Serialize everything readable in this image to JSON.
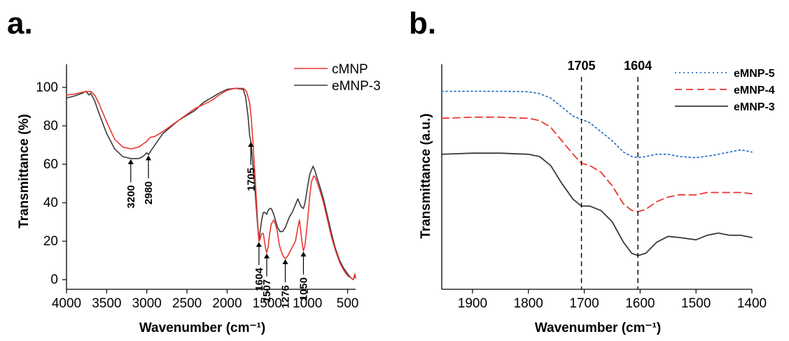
{
  "panels": {
    "a": {
      "label": "a."
    },
    "b": {
      "label": "b."
    }
  },
  "chart_data": [
    {
      "type": "line",
      "panel": "a",
      "xlabel": "Wavenumber (cm⁻¹)",
      "ylabel": "Transmittance (%)",
      "xlim": [
        4000,
        400
      ],
      "ylim": [
        -5,
        112
      ],
      "x_reversed": true,
      "xticks": [
        4000,
        3500,
        3000,
        2500,
        2000,
        1500,
        1000,
        500
      ],
      "yticks": [
        0,
        20,
        40,
        60,
        80,
        100
      ],
      "legend_position": "top-right",
      "series": [
        {
          "name": "cMNP",
          "color": "#e8372f",
          "dash": "solid",
          "points": [
            [
              4000,
              96
            ],
            [
              3900,
              96.5
            ],
            [
              3800,
              97.5
            ],
            [
              3700,
              98
            ],
            [
              3650,
              96
            ],
            [
              3600,
              92
            ],
            [
              3500,
              82
            ],
            [
              3400,
              73
            ],
            [
              3300,
              69
            ],
            [
              3200,
              68
            ],
            [
              3100,
              69
            ],
            [
              3000,
              72
            ],
            [
              2960,
              74
            ],
            [
              2900,
              74.5
            ],
            [
              2800,
              77
            ],
            [
              2600,
              83
            ],
            [
              2400,
              89
            ],
            [
              2300,
              91
            ],
            [
              2200,
              93
            ],
            [
              2100,
              96
            ],
            [
              2000,
              98.5
            ],
            [
              1900,
              99.5
            ],
            [
              1800,
              99.5
            ],
            [
              1760,
              98
            ],
            [
              1720,
              92
            ],
            [
              1700,
              84
            ],
            [
              1680,
              72
            ],
            [
              1650,
              52
            ],
            [
              1620,
              30
            ],
            [
              1604,
              20
            ],
            [
              1590,
              21
            ],
            [
              1570,
              24
            ],
            [
              1550,
              24
            ],
            [
              1520,
              16
            ],
            [
              1507,
              14
            ],
            [
              1490,
              17
            ],
            [
              1470,
              24
            ],
            [
              1450,
              29
            ],
            [
              1420,
              31
            ],
            [
              1400,
              29
            ],
            [
              1380,
              26
            ],
            [
              1350,
              18
            ],
            [
              1320,
              14
            ],
            [
              1300,
              12
            ],
            [
              1276,
              11
            ],
            [
              1250,
              12
            ],
            [
              1200,
              16
            ],
            [
              1150,
              20
            ],
            [
              1120,
              27
            ],
            [
              1100,
              31
            ],
            [
              1080,
              24
            ],
            [
              1060,
              17
            ],
            [
              1050,
              15
            ],
            [
              1030,
              18
            ],
            [
              1000,
              30
            ],
            [
              970,
              44
            ],
            [
              950,
              51
            ],
            [
              920,
              54
            ],
            [
              900,
              53
            ],
            [
              850,
              47
            ],
            [
              800,
              40
            ],
            [
              750,
              31
            ],
            [
              700,
              22
            ],
            [
              650,
              15
            ],
            [
              600,
              9
            ],
            [
              550,
              5
            ],
            [
              500,
              2
            ],
            [
              460,
              1
            ],
            [
              430,
              0
            ],
            [
              410,
              3
            ],
            [
              400,
              1
            ]
          ]
        },
        {
          "name": "eMNP-3",
          "color": "#3a3a3a",
          "dash": "solid",
          "points": [
            [
              4000,
              94.5
            ],
            [
              3900,
              95.5
            ],
            [
              3800,
              97
            ],
            [
              3760,
              98
            ],
            [
              3720,
              96
            ],
            [
              3700,
              97
            ],
            [
              3650,
              93
            ],
            [
              3600,
              87
            ],
            [
              3500,
              76
            ],
            [
              3400,
              68
            ],
            [
              3300,
              64
            ],
            [
              3200,
              63
            ],
            [
              3100,
              63
            ],
            [
              3050,
              64
            ],
            [
              3000,
              66
            ],
            [
              2980,
              65
            ],
            [
              2950,
              67
            ],
            [
              2900,
              70
            ],
            [
              2800,
              76
            ],
            [
              2600,
              83
            ],
            [
              2400,
              88
            ],
            [
              2300,
              92
            ],
            [
              2200,
              94.5
            ],
            [
              2100,
              97
            ],
            [
              2000,
              99
            ],
            [
              1900,
              99.5
            ],
            [
              1800,
              99
            ],
            [
              1770,
              95
            ],
            [
              1740,
              85
            ],
            [
              1720,
              75
            ],
            [
              1705,
              72
            ],
            [
              1680,
              60
            ],
            [
              1650,
              45
            ],
            [
              1620,
              28
            ],
            [
              1604,
              20
            ],
            [
              1590,
              25
            ],
            [
              1570,
              31
            ],
            [
              1550,
              35
            ],
            [
              1530,
              35
            ],
            [
              1507,
              34
            ],
            [
              1490,
              36
            ],
            [
              1470,
              37
            ],
            [
              1450,
              37
            ],
            [
              1420,
              34
            ],
            [
              1400,
              31
            ],
            [
              1370,
              27
            ],
            [
              1340,
              25
            ],
            [
              1310,
              25
            ],
            [
              1276,
              27
            ],
            [
              1250,
              30
            ],
            [
              1220,
              33
            ],
            [
              1190,
              35
            ],
            [
              1150,
              39
            ],
            [
              1120,
              42
            ],
            [
              1100,
              40
            ],
            [
              1080,
              38
            ],
            [
              1050,
              37
            ],
            [
              1030,
              40
            ],
            [
              1000,
              48
            ],
            [
              970,
              55
            ],
            [
              950,
              57
            ],
            [
              930,
              59
            ],
            [
              910,
              57
            ],
            [
              880,
              53
            ],
            [
              850,
              49
            ],
            [
              800,
              42
            ],
            [
              750,
              33
            ],
            [
              700,
              24
            ],
            [
              650,
              16
            ],
            [
              600,
              10
            ],
            [
              550,
              6
            ],
            [
              500,
              3
            ],
            [
              460,
              1
            ],
            [
              430,
              0
            ],
            [
              410,
              2
            ],
            [
              400,
              1
            ]
          ]
        }
      ],
      "annotations": [
        {
          "text": "3200",
          "x": 3200,
          "y_tip": 63
        },
        {
          "text": "2980",
          "x": 2980,
          "y_tip": 65
        },
        {
          "text": "1705",
          "x": 1705,
          "y_tip": 72
        },
        {
          "text": "1604",
          "x": 1604,
          "y_tip": 20
        },
        {
          "text": "1507",
          "x": 1507,
          "y_tip": 14
        },
        {
          "text": "1276",
          "x": 1276,
          "y_tip": 11
        },
        {
          "text": "1050",
          "x": 1050,
          "y_tip": 15
        }
      ]
    },
    {
      "type": "line",
      "panel": "b",
      "xlabel": "Wavenumber (cm⁻¹)",
      "ylabel": "Transmittance (a.u.)",
      "xlim": [
        1955,
        1400
      ],
      "ylim": [
        0,
        100
      ],
      "x_reversed": true,
      "xticks": [
        1900,
        1800,
        1700,
        1600,
        1500,
        1400
      ],
      "yticks": [],
      "legend_position": "top-right",
      "vertical_markers": [
        {
          "text": "1705",
          "x": 1705
        },
        {
          "text": "1604",
          "x": 1604
        }
      ],
      "series": [
        {
          "name": "eMNP-5",
          "color": "#2e74c9",
          "dash": "dotted",
          "points": [
            [
              1955,
              88
            ],
            [
              1900,
              88
            ],
            [
              1850,
              88
            ],
            [
              1800,
              87.8
            ],
            [
              1780,
              87
            ],
            [
              1760,
              85
            ],
            [
              1740,
              81
            ],
            [
              1720,
              77
            ],
            [
              1705,
              75.5
            ],
            [
              1690,
              74
            ],
            [
              1670,
              70
            ],
            [
              1650,
              66
            ],
            [
              1630,
              61
            ],
            [
              1615,
              59
            ],
            [
              1604,
              58.5
            ],
            [
              1590,
              59
            ],
            [
              1570,
              60
            ],
            [
              1550,
              60
            ],
            [
              1530,
              59
            ],
            [
              1500,
              58.5
            ],
            [
              1470,
              59.5
            ],
            [
              1440,
              61
            ],
            [
              1420,
              62
            ],
            [
              1400,
              61
            ]
          ]
        },
        {
          "name": "eMNP-4",
          "color": "#e8372f",
          "dash": "dashed",
          "points": [
            [
              1955,
              76
            ],
            [
              1900,
              76.5
            ],
            [
              1850,
              76.5
            ],
            [
              1800,
              76
            ],
            [
              1780,
              75
            ],
            [
              1760,
              72
            ],
            [
              1740,
              66
            ],
            [
              1720,
              60
            ],
            [
              1705,
              56
            ],
            [
              1690,
              55
            ],
            [
              1670,
              52
            ],
            [
              1650,
              46
            ],
            [
              1630,
              38
            ],
            [
              1615,
              35
            ],
            [
              1604,
              34.5
            ],
            [
              1590,
              35.5
            ],
            [
              1570,
              39
            ],
            [
              1550,
              41
            ],
            [
              1530,
              42
            ],
            [
              1500,
              42
            ],
            [
              1480,
              43
            ],
            [
              1450,
              43
            ],
            [
              1420,
              43
            ],
            [
              1400,
              42.5
            ]
          ]
        },
        {
          "name": "eMNP-3",
          "color": "#3a3a3a",
          "dash": "solid",
          "points": [
            [
              1955,
              60
            ],
            [
              1900,
              60.5
            ],
            [
              1850,
              60.5
            ],
            [
              1800,
              60
            ],
            [
              1780,
              59
            ],
            [
              1760,
              55
            ],
            [
              1740,
              47
            ],
            [
              1720,
              40
            ],
            [
              1705,
              37
            ],
            [
              1690,
              37
            ],
            [
              1670,
              35
            ],
            [
              1650,
              30
            ],
            [
              1630,
              21
            ],
            [
              1615,
              16
            ],
            [
              1604,
              15
            ],
            [
              1590,
              16
            ],
            [
              1570,
              21
            ],
            [
              1550,
              23.5
            ],
            [
              1530,
              23
            ],
            [
              1500,
              22
            ],
            [
              1480,
              24
            ],
            [
              1460,
              25
            ],
            [
              1440,
              24
            ],
            [
              1420,
              24
            ],
            [
              1400,
              23
            ]
          ]
        }
      ]
    }
  ]
}
